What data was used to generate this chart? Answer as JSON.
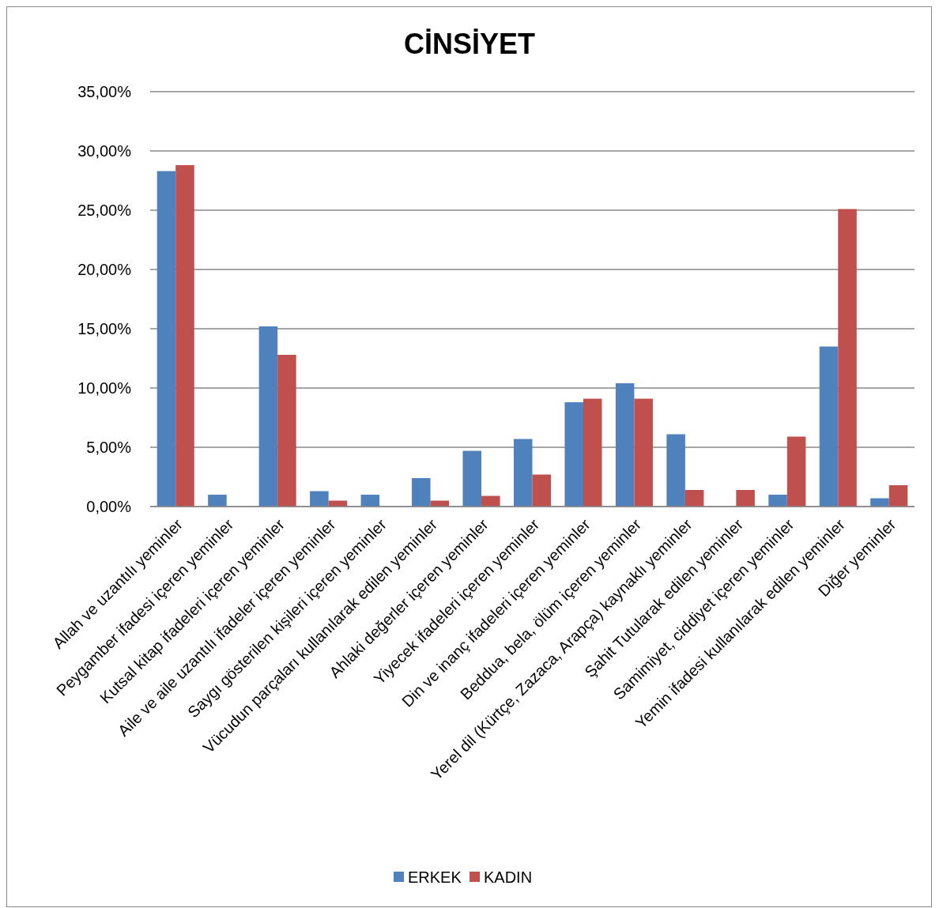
{
  "chart_data": {
    "type": "bar",
    "title": "CİNSİYET",
    "categories": [
      "Allah ve uzantılı yeminler",
      "Peygamber ifadesi içeren yeminler",
      "Kutsal kitap ifadeleri içeren yeminler",
      "Aile ve aile uzantılı ifadeler içeren yeminler",
      "Saygı gösterilen kişileri içeren yeminler",
      "Vücudun parçaları kullanılarak edilen yeminler",
      "Ahlaki değerler içeren yeminler",
      "Yiyecek ifadeleri içeren yeminler",
      "Din ve inanç ifadeleri içeren yeminler",
      "Beddua, bela, ölüm içeren yeminler",
      "Yerel dil (Kürtçe, Zazaca, Arapça) kaynaklı yeminler",
      "Şahit Tutularak edilen yeminler",
      "Samimiyet, ciddiyet içeren yeminler",
      "Yemin ifadesi kullanılarak edilen yeminler",
      "Diğer yeminler"
    ],
    "series": [
      {
        "name": "ERKEK",
        "color": "#4f81bd",
        "values": [
          28.3,
          1.0,
          15.2,
          1.3,
          1.0,
          2.4,
          4.7,
          5.7,
          8.8,
          10.4,
          6.1,
          0,
          1.0,
          13.5,
          0.7
        ]
      },
      {
        "name": "KADIN",
        "color": "#c0504d",
        "values": [
          28.8,
          0,
          12.8,
          0.5,
          0,
          0.5,
          0.9,
          2.7,
          9.1,
          9.1,
          1.4,
          1.4,
          5.9,
          25.1,
          1.8
        ]
      }
    ],
    "ylim": [
      0,
      35
    ],
    "yticks": [
      {
        "value": 0,
        "label": "0,00%"
      },
      {
        "value": 5,
        "label": "5,00%"
      },
      {
        "value": 10,
        "label": "10,00%"
      },
      {
        "value": 15,
        "label": "15,00%"
      },
      {
        "value": 20,
        "label": "20,00%"
      },
      {
        "value": 25,
        "label": "25,00%"
      },
      {
        "value": 30,
        "label": "30,00%"
      },
      {
        "value": 35,
        "label": "35,00%"
      }
    ],
    "grid": "y",
    "legend": "bottom"
  }
}
